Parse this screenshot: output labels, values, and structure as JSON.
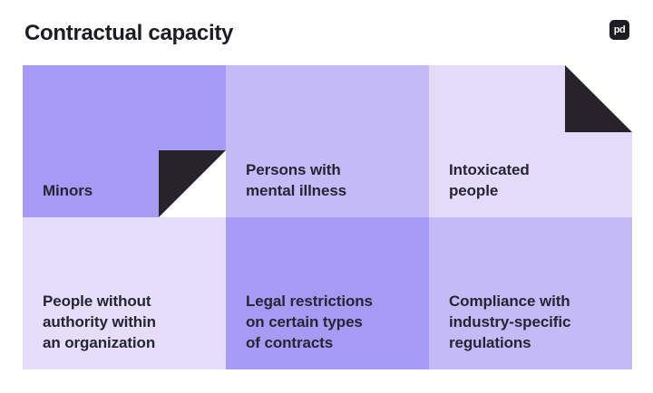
{
  "page": {
    "title": "Contractual capacity",
    "logo_text": "pd",
    "background": "#ffffff"
  },
  "colors": {
    "title_text": "#1d1c24",
    "cell_text": "#272433",
    "logo_background": "#1e1d24",
    "fold_black": "#26232a",
    "fold_white": "#ffffff",
    "purple_medium": "#a59bf5",
    "purple_light": "#c4bbf6",
    "purple_lightest": "#e2dcfa"
  },
  "grid": {
    "cells": [
      {
        "label": "Minors",
        "color": "#a59bf5",
        "fold": "bottom-right"
      },
      {
        "label": "Persons with\nmental illness",
        "color": "#c4bbf6",
        "fold": null
      },
      {
        "label": "Intoxicated\npeople",
        "color": "#e2dcfa",
        "fold": "top-right"
      },
      {
        "label": "People without\nauthority within\nan organization",
        "color": "#e4defa",
        "fold": null
      },
      {
        "label": "Legal restrictions\non certain types\nof contracts",
        "color": "#a59bf5",
        "fold": null
      },
      {
        "label": "Compliance with\nindustry-specific\nregulations",
        "color": "#c4bbf6",
        "fold": null
      }
    ]
  }
}
